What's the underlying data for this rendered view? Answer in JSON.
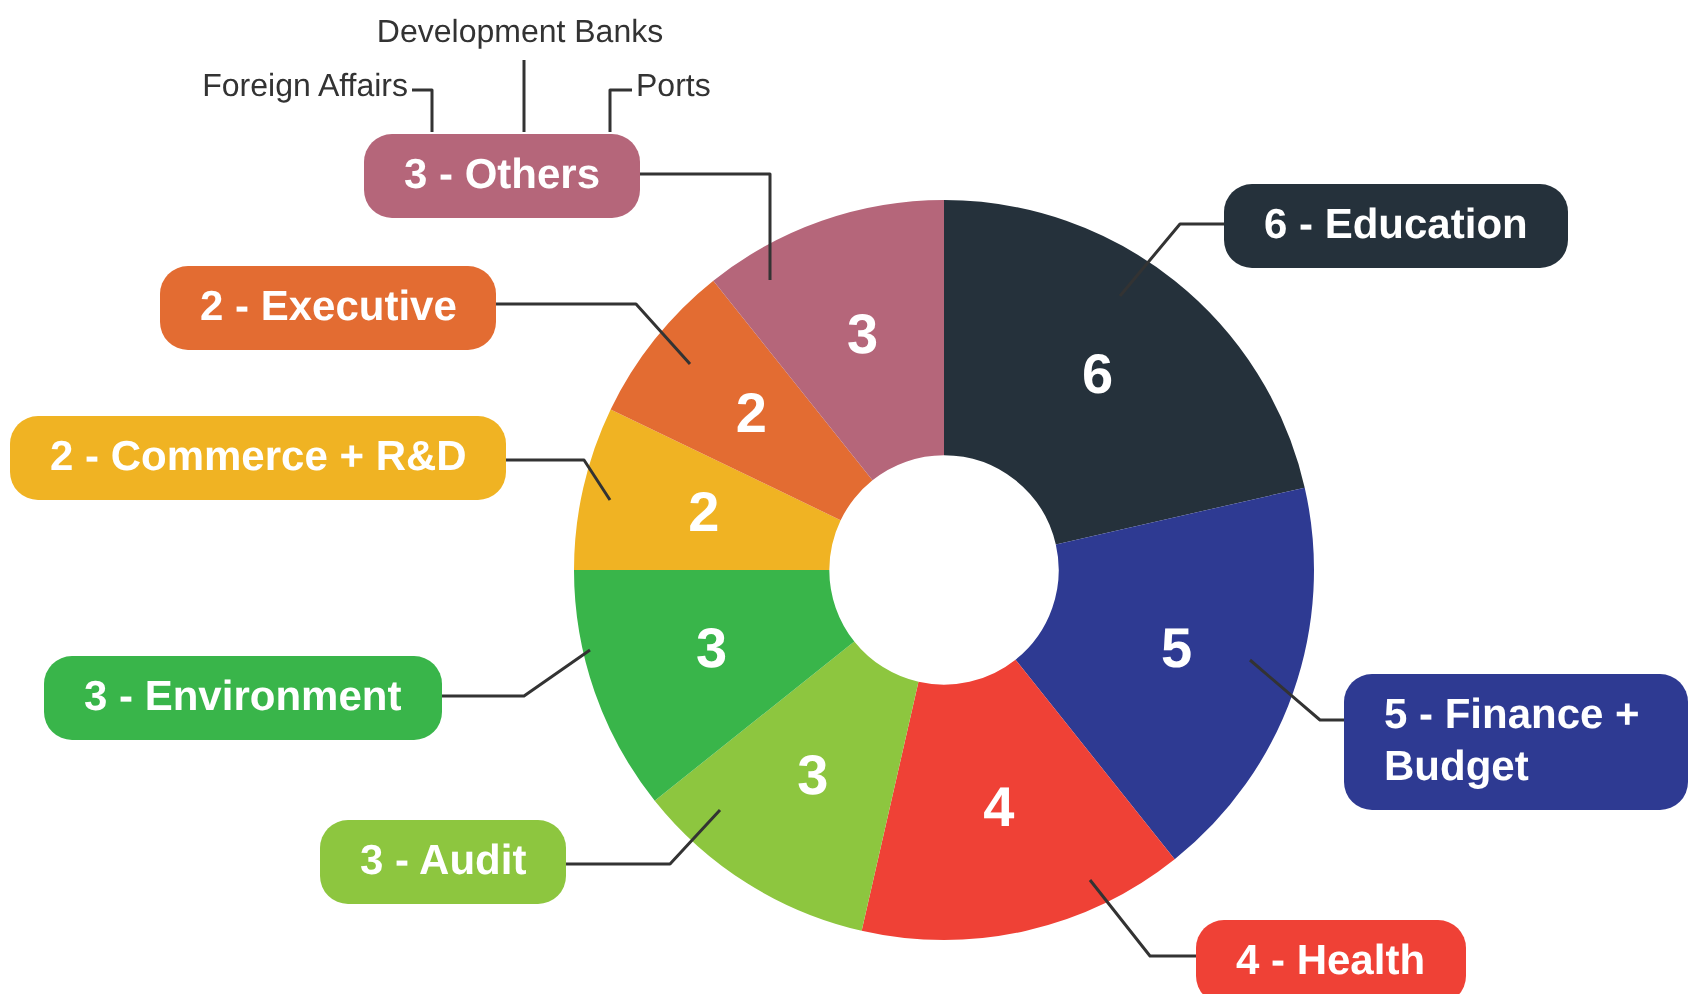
{
  "chart_data": {
    "type": "donut",
    "categories": [
      "6 - Education",
      "5 - Finance + Budget",
      "4 - Health",
      "3 - Audit",
      "3 - Environment",
      "2 - Commerce + R&D",
      "2 - Executive",
      "3 - Others"
    ],
    "values": [
      6,
      5,
      4,
      3,
      3,
      2,
      2,
      3
    ],
    "colors": [
      "#25313b",
      "#2e3a92",
      "#ef4136",
      "#8dc63f",
      "#39b54a",
      "#f0b323",
      "#e36c32",
      "#b5667a"
    ],
    "data_labels": true,
    "legend": false,
    "annotations": [
      "Foreign Affairs",
      "Development Banks",
      "Ports"
    ]
  }
}
